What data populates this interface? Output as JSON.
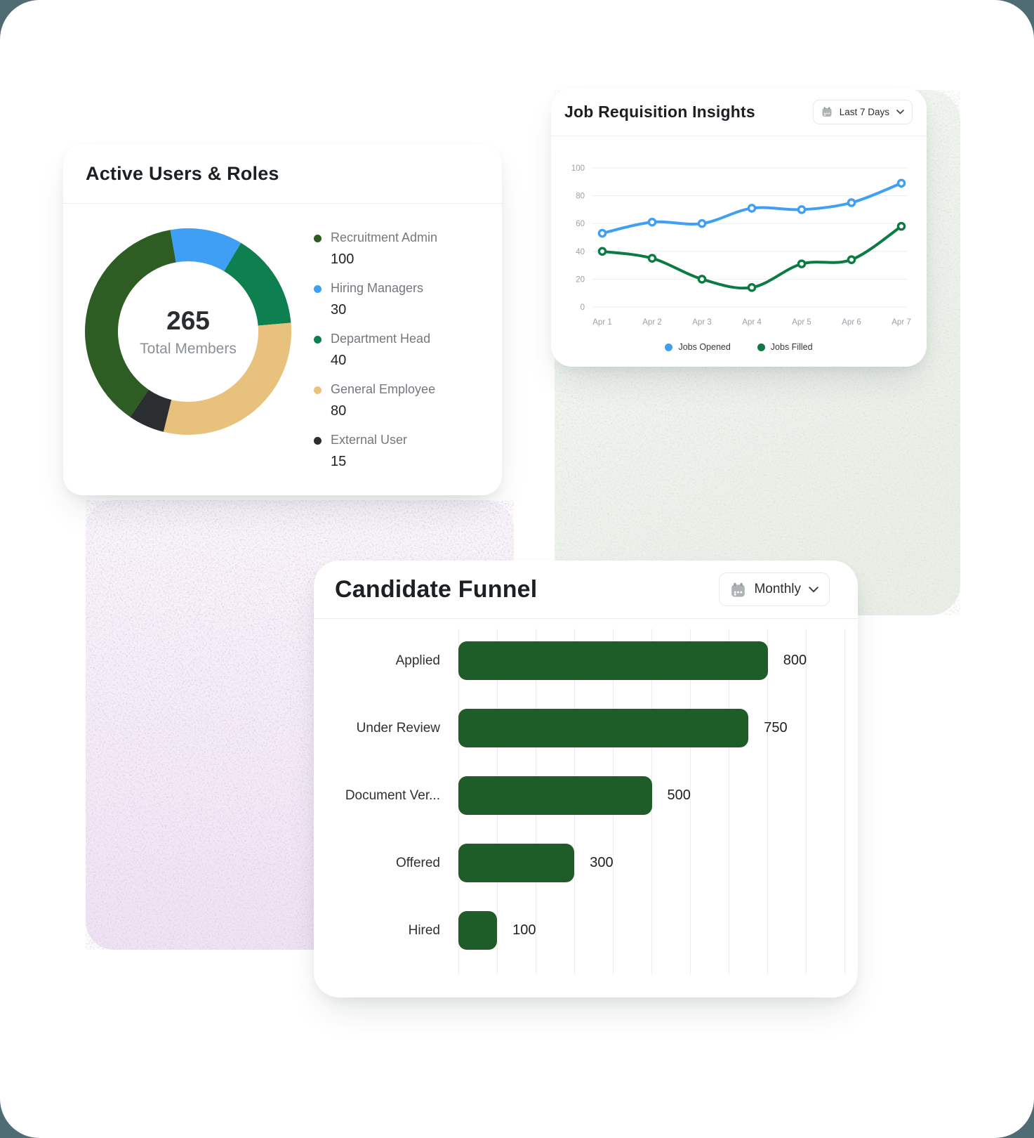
{
  "page": {
    "outside_color": "#4f6b74",
    "surface_color": "#ffffff"
  },
  "active_users_card": {
    "title": "Active Users & Roles",
    "center_value": "265",
    "center_label": "Total Members"
  },
  "job_requisition_card": {
    "title": "Job Requisition Insights",
    "range_selector": {
      "label": "Last 7 Days",
      "icon": "calendar-icon",
      "chevron": "chevron-down-icon"
    }
  },
  "candidate_funnel_card": {
    "title": "Candidate Funnel",
    "range_selector": {
      "label": "Monthly",
      "icon": "calendar-icon",
      "chevron": "chevron-down-icon"
    }
  },
  "chart_data": [
    {
      "id": "roles_donut",
      "type": "pie",
      "donut": true,
      "title": "Active Users & Roles",
      "labels": [
        "Recruitment Admin",
        "Hiring Managers",
        "Department Head",
        "General Employee",
        "External User"
      ],
      "values": [
        100,
        30,
        40,
        80,
        15
      ],
      "colors": [
        "#2e5d23",
        "#3f9ff4",
        "#0e8050",
        "#e8c27d",
        "#2a2e30"
      ],
      "total": 265,
      "center_label": "Total Members",
      "start_angle_deg": 214.2,
      "legend_position": "right"
    },
    {
      "id": "job_requisition_line",
      "type": "line",
      "title": "Job Requisition Insights",
      "x": [
        "Apr 1",
        "Apr 2",
        "Apr 3",
        "Apr 4",
        "Apr 5",
        "Apr 6",
        "Apr 7"
      ],
      "series": [
        {
          "name": "Jobs Opened",
          "color": "#3f9ff4",
          "values": [
            53,
            61,
            60,
            71,
            70,
            75,
            89
          ]
        },
        {
          "name": "Jobs Filled",
          "color": "#0b7b43",
          "values": [
            40,
            35,
            20,
            14,
            31,
            34,
            58
          ]
        }
      ],
      "ylim": [
        0,
        100
      ],
      "yticks": [
        0,
        20,
        40,
        60,
        80,
        100
      ],
      "grid": "horizontal",
      "smooth": true,
      "legend_position": "bottom"
    },
    {
      "id": "candidate_funnel_bars",
      "type": "bar",
      "orientation": "horizontal",
      "title": "Candidate Funnel",
      "categories": [
        "Applied",
        "Under Review",
        "Document Ver...",
        "Offered",
        "Hired"
      ],
      "values": [
        800,
        750,
        500,
        300,
        100
      ],
      "bar_color": "#1e5c28",
      "xlim": [
        0,
        1000
      ],
      "grid": "vertical",
      "grid_interval": 100,
      "value_labels": [
        800,
        750,
        500,
        300,
        100
      ]
    }
  ]
}
